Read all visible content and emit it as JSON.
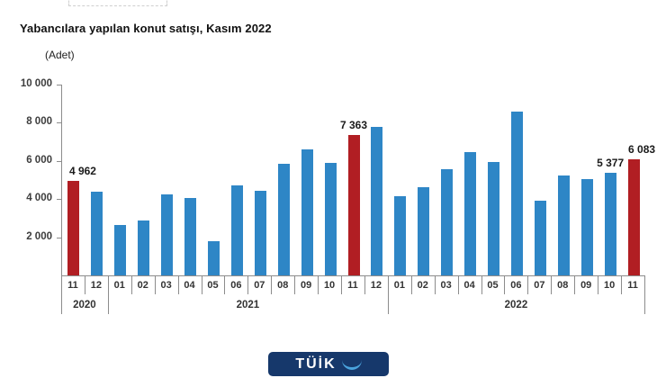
{
  "header": {
    "title": "Yabancılara yapılan konut satışı, Kasım 2022",
    "subtitle": "(Adet)"
  },
  "chart_data": {
    "type": "bar",
    "title": "Yabancılara yapılan konut satışı, Kasım 2022",
    "ylabel": "(Adet)",
    "xlabel": "",
    "ylim": [
      0,
      10000
    ],
    "grid": false,
    "legend": "none",
    "y_ticks": [
      {
        "value": 10000,
        "label": "10 000"
      },
      {
        "value": 8000,
        "label": "8 000"
      },
      {
        "value": 6000,
        "label": "6 000"
      },
      {
        "value": 4000,
        "label": "4 000"
      },
      {
        "value": 2000,
        "label": "2 000"
      }
    ],
    "colors": {
      "bar": "#2E86C6",
      "highlight": "#B11E23",
      "axis": "#8C8C8C",
      "text": "#333333"
    },
    "year_groups": [
      {
        "label": "2020",
        "start": 0,
        "end": 2
      },
      {
        "label": "2021",
        "start": 2,
        "end": 14
      },
      {
        "label": "2022",
        "start": 14,
        "end": 25
      }
    ],
    "bars": [
      {
        "month": "11",
        "year": "2020",
        "value": 4962,
        "highlight": true,
        "label": "4 962"
      },
      {
        "month": "12",
        "year": "2020",
        "value": 4400,
        "highlight": false,
        "label": ""
      },
      {
        "month": "01",
        "year": "2021",
        "value": 2650,
        "highlight": false,
        "label": ""
      },
      {
        "month": "02",
        "year": "2021",
        "value": 2900,
        "highlight": false,
        "label": ""
      },
      {
        "month": "03",
        "year": "2021",
        "value": 4250,
        "highlight": false,
        "label": ""
      },
      {
        "month": "04",
        "year": "2021",
        "value": 4050,
        "highlight": false,
        "label": ""
      },
      {
        "month": "05",
        "year": "2021",
        "value": 1800,
        "highlight": false,
        "label": ""
      },
      {
        "month": "06",
        "year": "2021",
        "value": 4700,
        "highlight": false,
        "label": ""
      },
      {
        "month": "07",
        "year": "2021",
        "value": 4450,
        "highlight": false,
        "label": ""
      },
      {
        "month": "08",
        "year": "2021",
        "value": 5850,
        "highlight": false,
        "label": ""
      },
      {
        "month": "09",
        "year": "2021",
        "value": 6600,
        "highlight": false,
        "label": ""
      },
      {
        "month": "10",
        "year": "2021",
        "value": 5900,
        "highlight": false,
        "label": ""
      },
      {
        "month": "11",
        "year": "2021",
        "value": 7363,
        "highlight": true,
        "label": "7 363"
      },
      {
        "month": "12",
        "year": "2021",
        "value": 7800,
        "highlight": false,
        "label": ""
      },
      {
        "month": "01",
        "year": "2022",
        "value": 4150,
        "highlight": false,
        "label": ""
      },
      {
        "month": "02",
        "year": "2022",
        "value": 4600,
        "highlight": false,
        "label": ""
      },
      {
        "month": "03",
        "year": "2022",
        "value": 5550,
        "highlight": false,
        "label": ""
      },
      {
        "month": "04",
        "year": "2022",
        "value": 6450,
        "highlight": false,
        "label": ""
      },
      {
        "month": "05",
        "year": "2022",
        "value": 5950,
        "highlight": false,
        "label": ""
      },
      {
        "month": "06",
        "year": "2022",
        "value": 8600,
        "highlight": false,
        "label": ""
      },
      {
        "month": "07",
        "year": "2022",
        "value": 3900,
        "highlight": false,
        "label": ""
      },
      {
        "month": "08",
        "year": "2022",
        "value": 5250,
        "highlight": false,
        "label": ""
      },
      {
        "month": "09",
        "year": "2022",
        "value": 5030,
        "highlight": false,
        "label": ""
      },
      {
        "month": "10",
        "year": "2022",
        "value": 5377,
        "highlight": false,
        "label": "5 377"
      },
      {
        "month": "11",
        "year": "2022",
        "value": 6083,
        "highlight": true,
        "label": "6 083"
      }
    ]
  },
  "footer": {
    "logo_text": "TÜİK"
  }
}
